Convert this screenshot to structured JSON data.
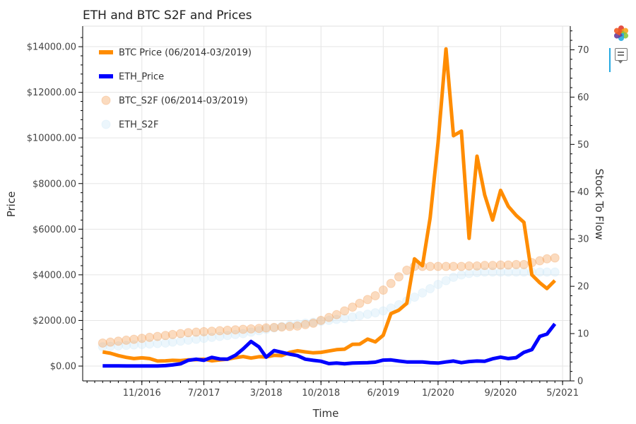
{
  "chart_data": {
    "type": "line",
    "title": "ETH and BTC S2F and Prices",
    "xlabel": "Time",
    "ylabel": "Price",
    "y2label": "Stock To Flow",
    "x_ticks": [
      "11/2016",
      "7/2017",
      "3/2018",
      "10/2018",
      "6/2019",
      "1/2020",
      "9/2020",
      "5/2021"
    ],
    "x_tick_dates": [
      "2016-11-01",
      "2017-07-01",
      "2018-03-01",
      "2018-10-01",
      "2019-06-01",
      "2020-01-01",
      "2020-09-01",
      "2021-05-01"
    ],
    "y_ticks": [
      0,
      2000,
      4000,
      6000,
      8000,
      10000,
      12000,
      14000
    ],
    "y_tick_labels": [
      "$0.00",
      "$2000.00",
      "$4000.00",
      "$6000.00",
      "$8000.00",
      "$10000.00",
      "$12000.00",
      "$14000.00"
    ],
    "y2_ticks": [
      0,
      10,
      20,
      30,
      40,
      50,
      60,
      70
    ],
    "y2_tick_labels": [
      "0",
      "10",
      "20",
      "30",
      "40",
      "50",
      "60",
      "70"
    ],
    "xlim": [
      "2016-03-15",
      "2021-05-31"
    ],
    "ylim": [
      -650,
      14900
    ],
    "y2lim": [
      0,
      75
    ],
    "grid": true,
    "legend_position": "top-left",
    "x": [
      "2016-06-01",
      "2016-07-01",
      "2016-08-01",
      "2016-09-01",
      "2016-10-01",
      "2016-11-01",
      "2016-12-01",
      "2017-01-01",
      "2017-02-01",
      "2017-03-01",
      "2017-04-01",
      "2017-05-01",
      "2017-06-01",
      "2017-07-01",
      "2017-08-01",
      "2017-09-01",
      "2017-10-01",
      "2017-11-01",
      "2017-12-01",
      "2018-01-01",
      "2018-02-01",
      "2018-03-01",
      "2018-04-01",
      "2018-05-01",
      "2018-06-01",
      "2018-07-01",
      "2018-08-01",
      "2018-09-01",
      "2018-10-01",
      "2018-11-01",
      "2018-12-01",
      "2019-01-01",
      "2019-02-01",
      "2019-03-01",
      "2019-04-01",
      "2019-05-01",
      "2019-06-01",
      "2019-07-01",
      "2019-08-01",
      "2019-09-01",
      "2019-10-01",
      "2019-11-01",
      "2019-12-01",
      "2020-01-01",
      "2020-02-01",
      "2020-03-01",
      "2020-04-01",
      "2020-05-01",
      "2020-06-01",
      "2020-07-01",
      "2020-08-01",
      "2020-09-01",
      "2020-10-01",
      "2020-11-01",
      "2020-12-01",
      "2021-01-01",
      "2021-02-01",
      "2021-03-01",
      "2021-04-01"
    ],
    "series": [
      {
        "name": "BTC Price (06/2014-03/2019)",
        "kind": "line",
        "axis": "left",
        "color": "#ff8c00",
        "values": [
          620,
          560,
          460,
          380,
          330,
          360,
          330,
          220,
          230,
          250,
          240,
          270,
          280,
          300,
          230,
          270,
          300,
          370,
          420,
          350,
          410,
          400,
          470,
          460,
          600,
          670,
          620,
          580,
          600,
          660,
          720,
          740,
          950,
          960,
          1180,
          1060,
          1350,
          2300,
          2450,
          2750,
          4700,
          4400,
          6500,
          9800,
          13900,
          10100,
          10300,
          5600,
          9200,
          7500,
          6400,
          7700,
          7000,
          6600,
          6300,
          4000,
          3650,
          3400,
          3750
        ]
      },
      {
        "name": "ETH_Price",
        "kind": "line",
        "axis": "left",
        "color": "#0000ff",
        "values": [
          10,
          10,
          10,
          5,
          5,
          5,
          5,
          5,
          20,
          50,
          100,
          250,
          300,
          250,
          380,
          310,
          300,
          470,
          750,
          1080,
          840,
          390,
          680,
          600,
          520,
          460,
          300,
          250,
          210,
          110,
          130,
          100,
          130,
          140,
          150,
          170,
          260,
          270,
          220,
          180,
          180,
          180,
          150,
          130,
          180,
          220,
          150,
          200,
          220,
          210,
          320,
          390,
          330,
          370,
          600,
          720,
          1300,
          1400,
          1850
        ]
      },
      {
        "name": "BTC_S2F (06/2014-03/2019)",
        "kind": "scatter",
        "axis": "right",
        "color": "#f4a460",
        "values": [
          8.0,
          8.2,
          8.4,
          8.6,
          8.8,
          9.0,
          9.2,
          9.4,
          9.6,
          9.8,
          10.0,
          10.2,
          10.3,
          10.4,
          10.5,
          10.6,
          10.7,
          10.8,
          10.9,
          11.0,
          11.1,
          11.2,
          11.3,
          11.4,
          11.5,
          11.6,
          11.9,
          12.2,
          12.8,
          13.4,
          14.0,
          14.8,
          15.6,
          16.4,
          17.2,
          18.0,
          19.2,
          20.6,
          22.0,
          23.4,
          24.2,
          24.2,
          24.2,
          24.2,
          24.2,
          24.2,
          24.2,
          24.3,
          24.3,
          24.4,
          24.4,
          24.5,
          24.5,
          24.6,
          24.6,
          25.0,
          25.4,
          25.8,
          26.0
        ]
      },
      {
        "name": "ETH_S2F",
        "kind": "scatter",
        "axis": "right",
        "color": "#cfe8f7",
        "values": [
          7.2,
          7.3,
          7.4,
          7.5,
          7.6,
          7.7,
          7.8,
          7.9,
          8.0,
          8.2,
          8.4,
          8.6,
          8.8,
          9.0,
          9.2,
          9.4,
          9.6,
          9.8,
          10.0,
          10.3,
          10.6,
          10.9,
          11.2,
          11.5,
          11.8,
          12.0,
          12.2,
          12.4,
          12.6,
          12.8,
          13.0,
          13.2,
          13.5,
          13.8,
          14.1,
          14.4,
          14.8,
          15.4,
          16.1,
          16.9,
          17.7,
          18.6,
          19.5,
          20.4,
          21.2,
          21.9,
          22.4,
          22.7,
          22.9,
          23.0,
          23.0,
          23.0,
          23.0,
          23.0,
          23.0,
          23.0,
          23.0,
          23.0,
          23.0
        ]
      }
    ]
  },
  "toolbar": {
    "logo_icon": "bokeh-logo-icon",
    "hover_icon": "hover-tool-icon",
    "logo_colors": [
      "#e03c31",
      "#f7a41d",
      "#8cc63f",
      "#26aae1",
      "#6a3d9a",
      "#f15a24"
    ]
  }
}
